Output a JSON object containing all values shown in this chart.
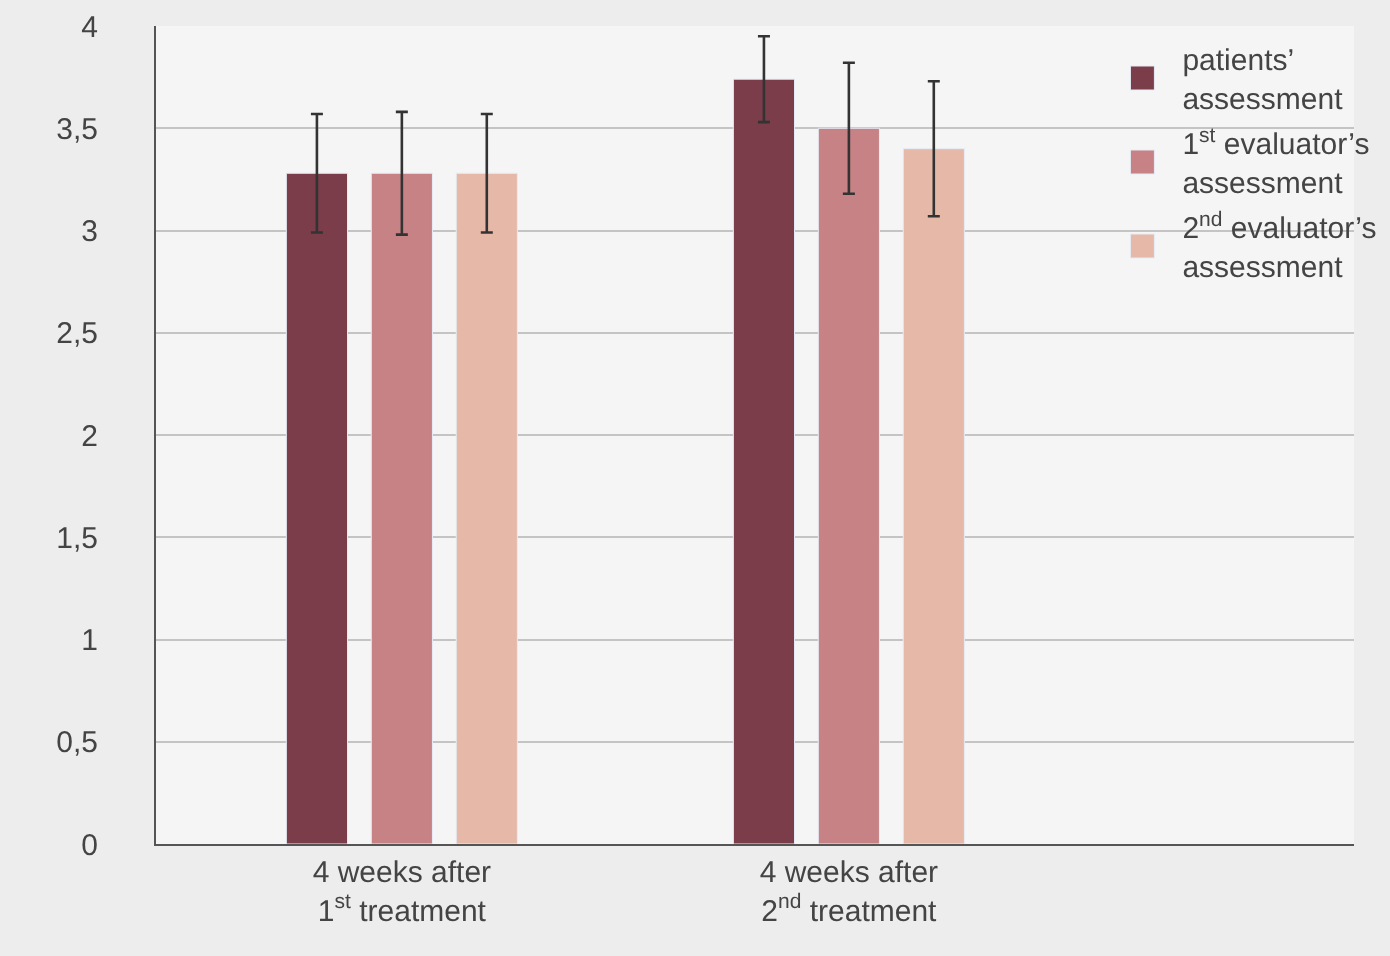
{
  "chart_data": {
    "type": "bar",
    "categories": [
      "4 weeks after\n1$^{st}$ treatment",
      "4 weeks after\n2$^{nd}$ treatment"
    ],
    "series": [
      {
        "name": "patients’\nassessment",
        "color": "#7b3d4a",
        "values": [
          3.28,
          3.74
        ],
        "errors": [
          0.29,
          0.21
        ]
      },
      {
        "name": "1$^{st}$ evaluator’s\nassessment",
        "color": "#c78285",
        "values": [
          3.28,
          3.5
        ],
        "errors": [
          0.3,
          0.32
        ]
      },
      {
        "name": "2$^{nd}$ evaluator’s\nassessment",
        "color": "#e6b8a8",
        "values": [
          3.28,
          3.4
        ],
        "errors": [
          0.29,
          0.33
        ]
      }
    ],
    "ylim": [
      0,
      4
    ],
    "yticks": [
      0,
      {
        "value": 0.5,
        "label": "0,5"
      },
      1,
      {
        "value": 1.5,
        "label": "1,5"
      },
      2,
      {
        "value": 2.5,
        "label": "2,5"
      },
      3,
      {
        "value": 3.5,
        "label": "3,5"
      },
      4
    ],
    "grid": "y",
    "legend": "top right"
  }
}
